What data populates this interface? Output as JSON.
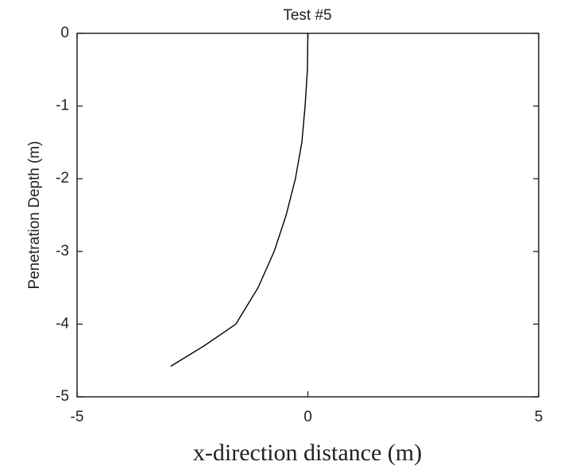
{
  "chart_data": {
    "type": "line",
    "title": "Test #5",
    "xlabel": "x-direction distance (m)",
    "ylabel": "Penetration Depth (m)",
    "x": [
      0,
      -0.01,
      -0.06,
      -0.13,
      -0.27,
      -0.47,
      -0.73,
      -1.08,
      -1.56,
      -2.25,
      -2.97
    ],
    "values": [
      0,
      -0.5,
      -1,
      -1.5,
      -2,
      -2.5,
      -3,
      -3.5,
      -4,
      -4.3,
      -4.58
    ],
    "color": "#000000",
    "xlim": [
      -5,
      5
    ],
    "xticks": [
      -5,
      0,
      5
    ],
    "ylim": [
      -5,
      0
    ],
    "yticks": [
      0,
      -1,
      -2,
      -3,
      -4,
      -5
    ],
    "grid": false
  }
}
